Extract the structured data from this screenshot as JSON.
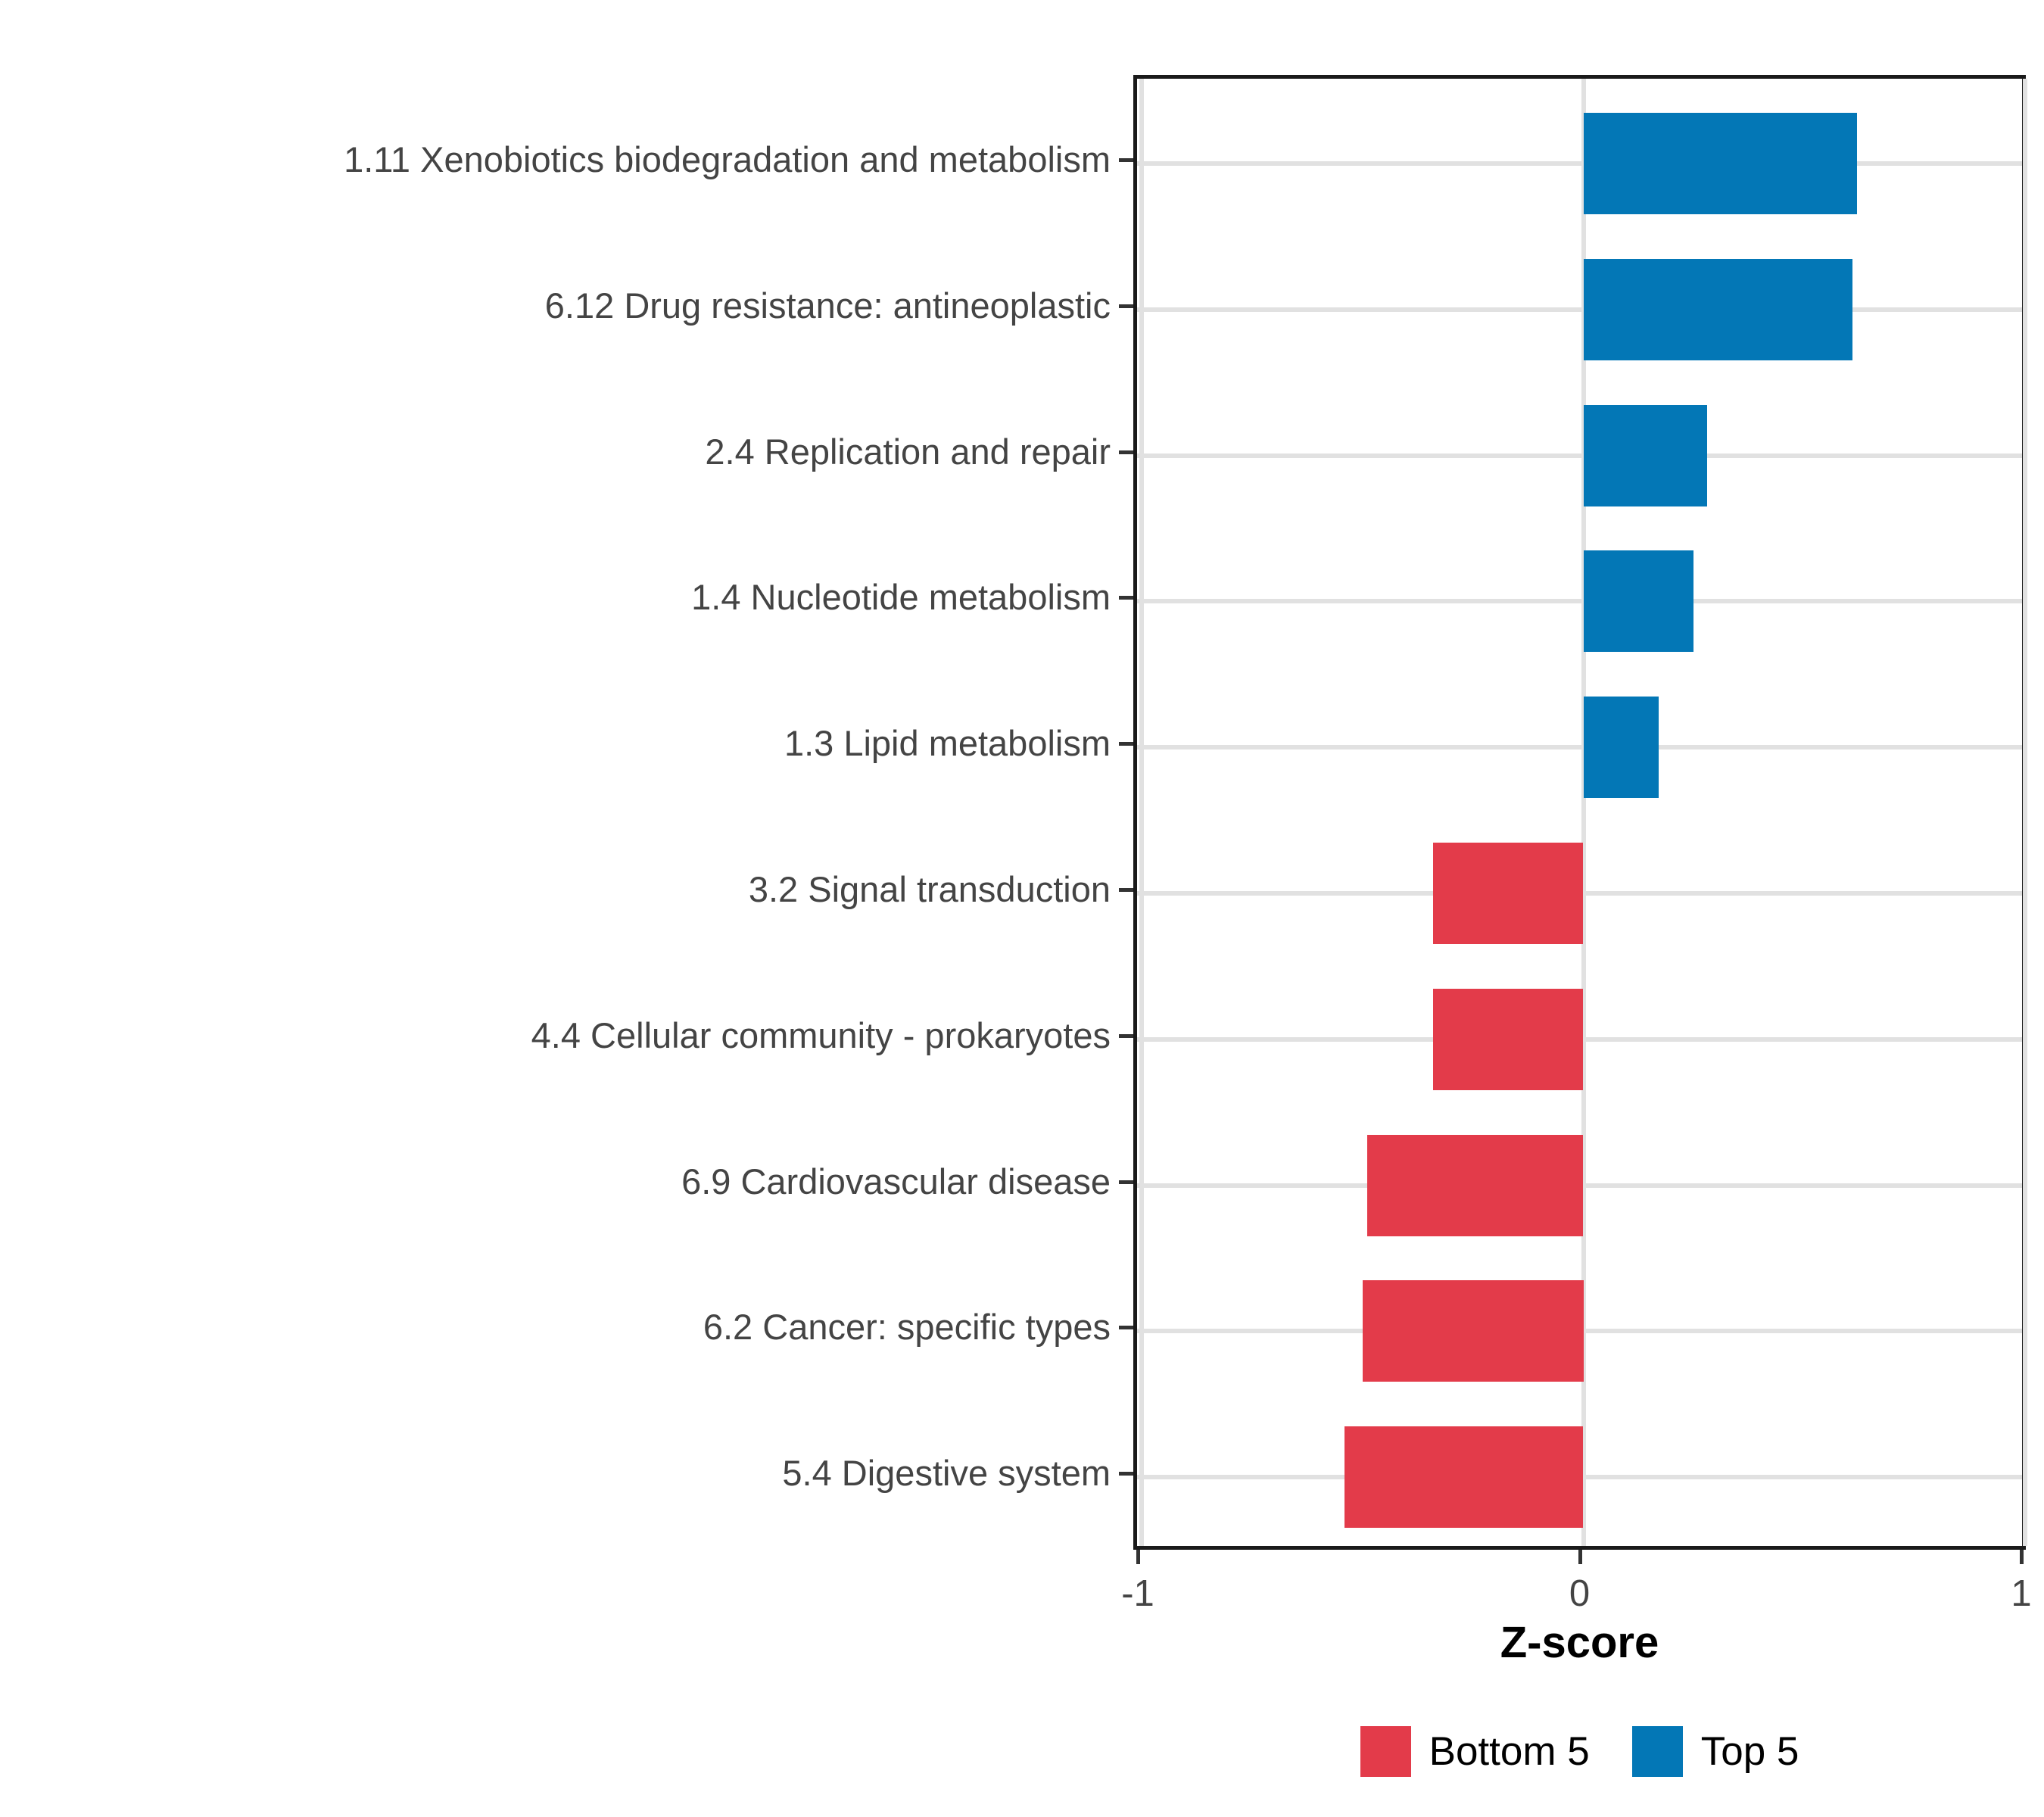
{
  "chart_data": {
    "type": "bar",
    "orientation": "horizontal",
    "title": "",
    "xlabel": "Z-score",
    "ylabel": "",
    "xlim": [
      -1,
      1
    ],
    "x_ticks": [
      -1,
      0,
      1
    ],
    "x_tick_labels": [
      "-1",
      "0",
      "1"
    ],
    "grid": "on",
    "categories": [
      "1.11 Xenobiotics biodegradation and metabolism",
      "6.12 Drug resistance: antineoplastic",
      "2.4 Replication and repair",
      "1.4 Nucleotide metabolism",
      "1.3 Lipid metabolism",
      "3.2 Signal transduction",
      "4.4 Cellular community - prokaryotes",
      "6.9 Cardiovascular disease",
      "6.2 Cancer: specific types",
      "5.4 Digestive system"
    ],
    "values": [
      0.62,
      0.61,
      0.28,
      0.25,
      0.17,
      -0.34,
      -0.34,
      -0.49,
      -0.5,
      -0.54
    ],
    "groups": [
      "Top 5",
      "Top 5",
      "Top 5",
      "Top 5",
      "Top 5",
      "Bottom 5",
      "Bottom 5",
      "Bottom 5",
      "Bottom 5",
      "Bottom 5"
    ],
    "legend_position": "bottom"
  },
  "legend": {
    "items": [
      {
        "label": "Bottom 5",
        "color": "#E33B4A"
      },
      {
        "label": "Top 5",
        "color": "#0377B6"
      }
    ]
  },
  "colors": {
    "top5": "#0377B6",
    "bottom5": "#E33B4A",
    "grid": "#E1E1E1",
    "panel_border": "#1A1A1A",
    "axis_text": "#444444",
    "tick": "#333333"
  }
}
